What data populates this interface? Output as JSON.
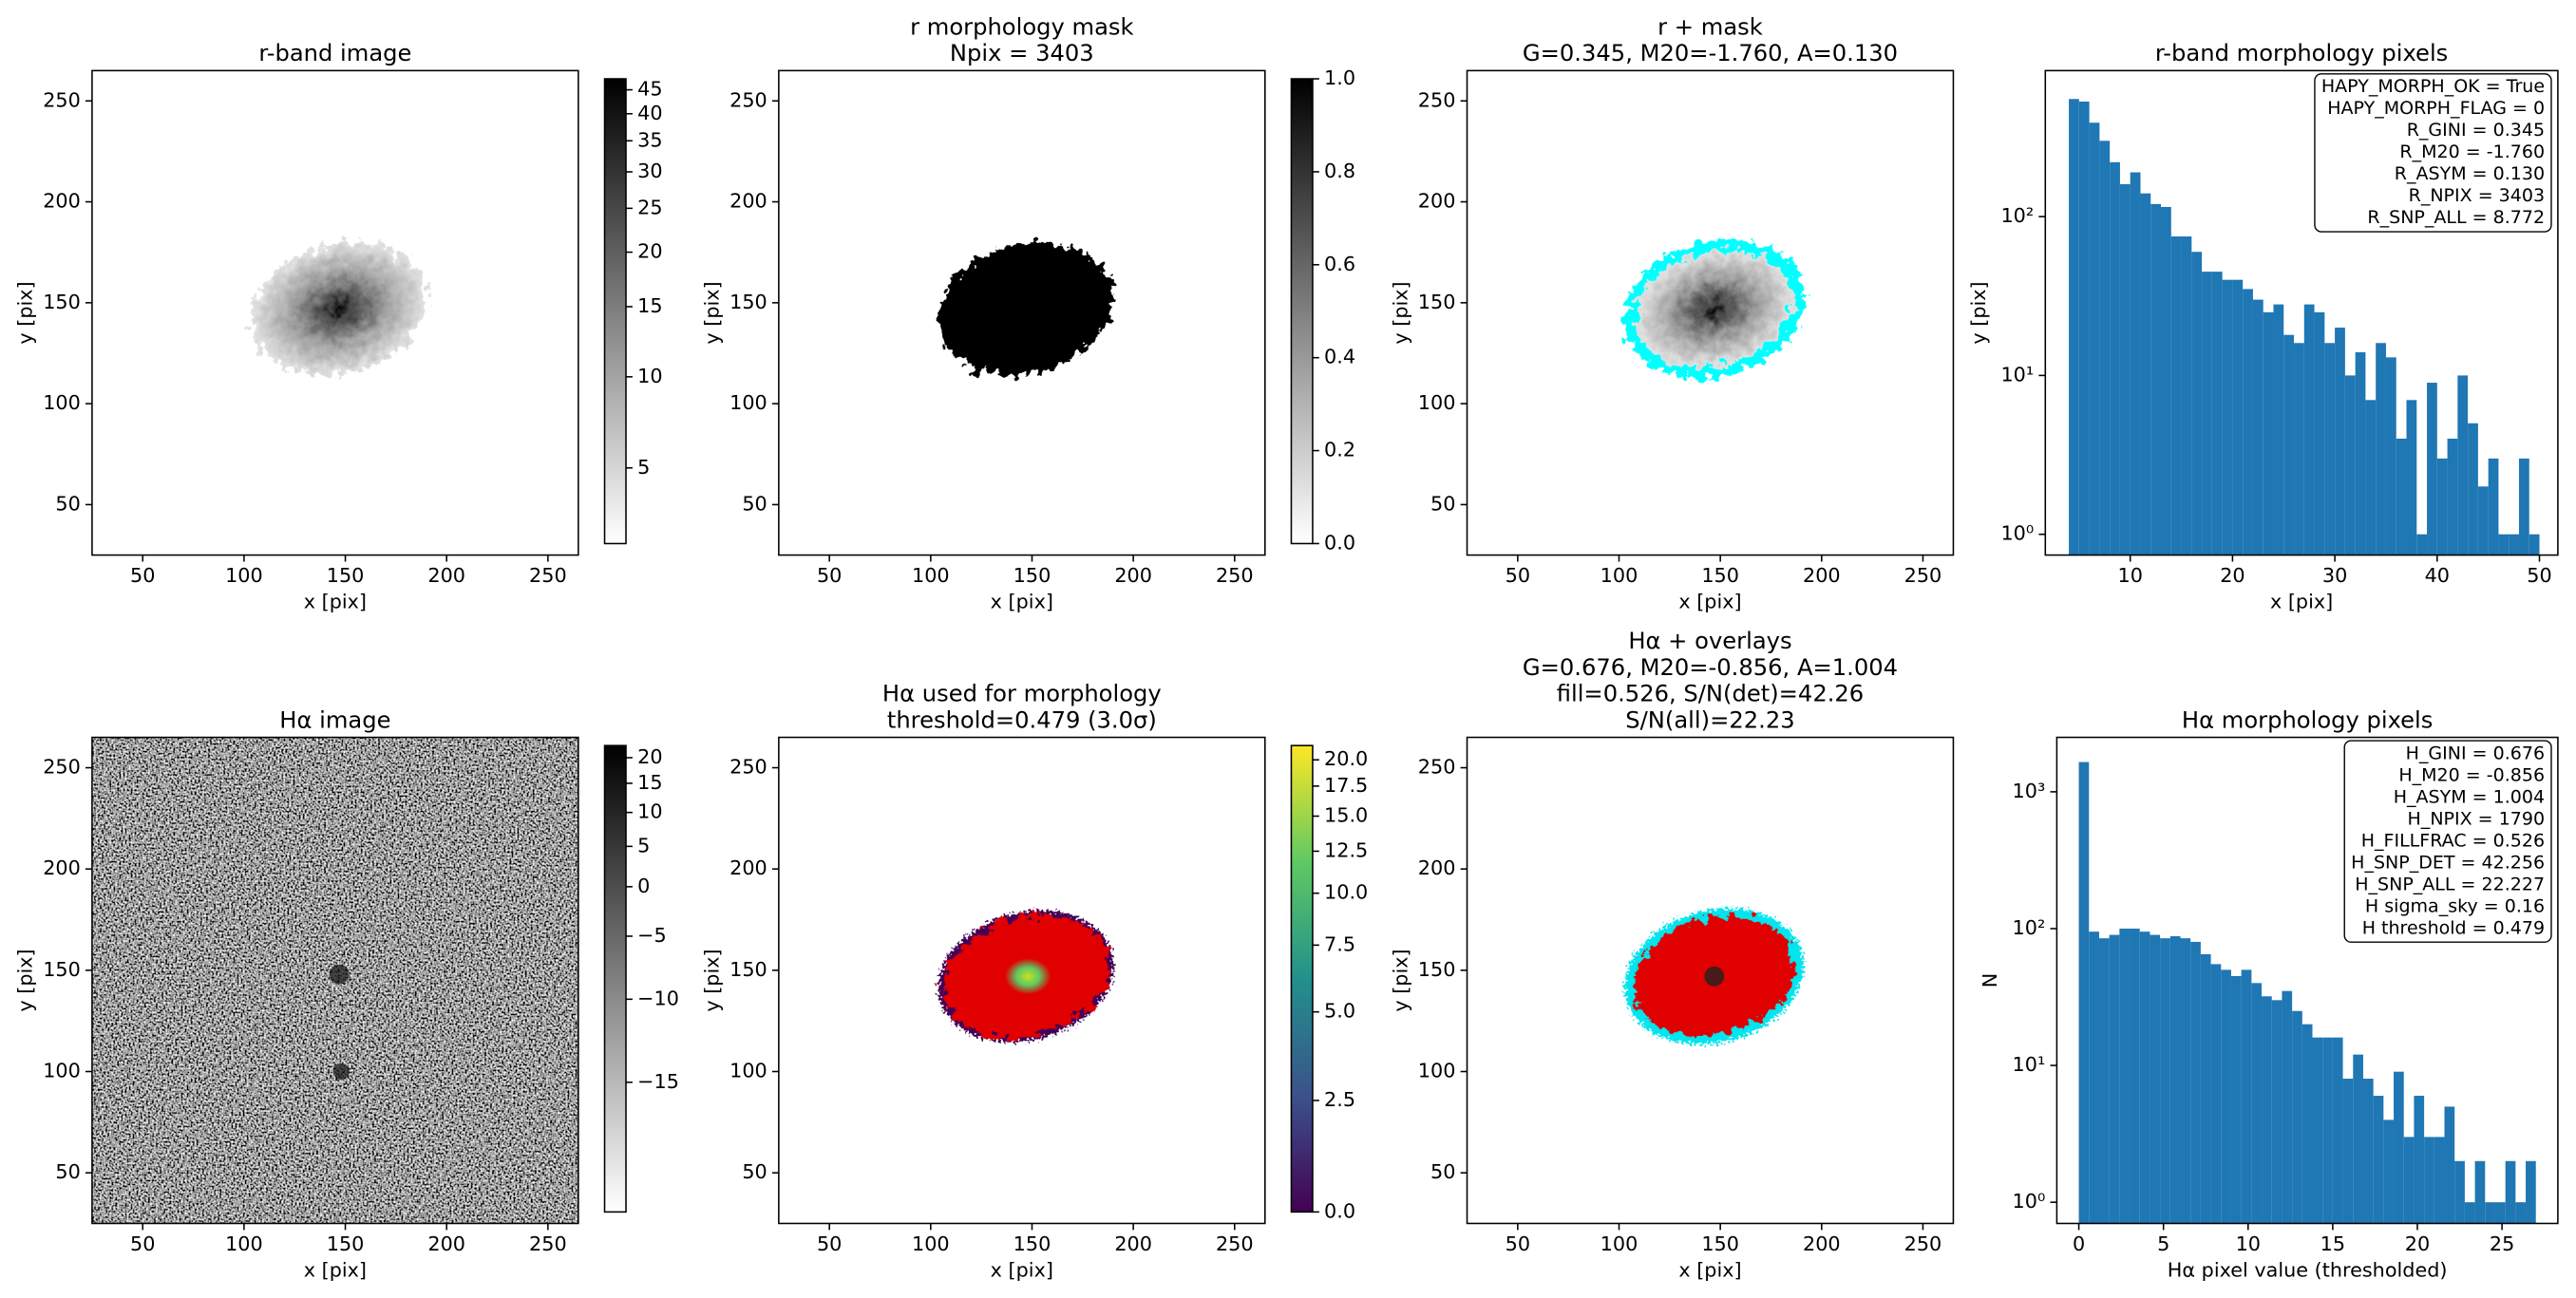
{
  "chart_data": [
    {
      "type": "image",
      "title": [
        "r-band image"
      ],
      "xlabel": "x [pix]",
      "ylabel": "y [pix]",
      "xlim": [
        25,
        265
      ],
      "ylim": [
        25,
        265
      ],
      "xticks": [
        50,
        100,
        150,
        200,
        250
      ],
      "yticks": [
        50,
        100,
        150,
        200,
        250
      ],
      "colorbar": {
        "cmap": "gray_r",
        "norm": "asinh",
        "clim": [
          1.45,
          47.5
        ],
        "ticks": [
          5,
          10,
          15,
          20,
          25,
          30,
          35,
          40,
          45
        ]
      }
    },
    {
      "type": "image",
      "title": [
        "r morphology mask",
        "Npix = 3403"
      ],
      "xlabel": "x [pix]",
      "ylabel": "y [pix]",
      "xlim": [
        25,
        265
      ],
      "ylim": [
        25,
        265
      ],
      "xticks": [
        50,
        100,
        150,
        200,
        250
      ],
      "yticks": [
        50,
        100,
        150,
        200,
        250
      ],
      "colorbar": {
        "cmap": "gray_r",
        "norm": "linear",
        "clim": [
          0,
          1
        ],
        "ticks": [
          {
            "value": 0,
            "label": "0.0"
          },
          0.2,
          0.4,
          0.6,
          0.8,
          {
            "value": 1,
            "label": "1.0"
          }
        ]
      }
    },
    {
      "type": "image",
      "title": [
        "r + mask",
        "G=0.345, M20=-1.760, A=0.130"
      ],
      "xlabel": "x [pix]",
      "ylabel": "y [pix]",
      "xlim": [
        25,
        265
      ],
      "ylim": [
        25,
        265
      ],
      "xticks": [
        50,
        100,
        150,
        200,
        250
      ],
      "yticks": [
        50,
        100,
        150,
        200,
        250
      ]
    },
    {
      "type": "histogram",
      "title": [
        "r-band morphology pixels"
      ],
      "xlabel": "x [pix]",
      "ylabel": "y [pix]",
      "color": "#1f77b4",
      "log_y": true,
      "bins": [
        4,
        5,
        6,
        7,
        8,
        9,
        10,
        11,
        12,
        13,
        14,
        15,
        16,
        17,
        18,
        19,
        20,
        21,
        22,
        23,
        24,
        25,
        26,
        27,
        28,
        29,
        30,
        31,
        32,
        33,
        34,
        35,
        36,
        37,
        38,
        39,
        40,
        41,
        42,
        43,
        44,
        45,
        46,
        47,
        48,
        49,
        50
      ],
      "values": [
        550,
        530,
        390,
        300,
        220,
        160,
        190,
        140,
        120,
        115,
        75,
        75,
        60,
        45,
        45,
        40,
        40,
        35,
        30,
        25,
        28,
        18,
        16,
        28,
        25,
        16,
        20,
        10,
        14,
        7,
        16,
        13,
        4,
        7,
        1,
        9,
        3,
        4,
        10,
        5,
        2,
        3,
        1,
        1,
        3,
        1
      ],
      "xlim": [
        1.7,
        51.8
      ],
      "ylim": [
        0.74,
        830
      ],
      "xticks": [
        10,
        20,
        30,
        40,
        50
      ],
      "yticks": [
        {
          "value": 1,
          "label": "10⁰"
        },
        {
          "value": 10,
          "label": "10¹"
        },
        {
          "value": 100,
          "label": "10²"
        }
      ],
      "annotation": [
        "HAPY_MORPH_OK = True",
        "HAPY_MORPH_FLAG = 0",
        "R_GINI = 0.345",
        "R_M20 = -1.760",
        "R_ASYM = 0.130",
        "R_NPIX = 3403",
        "R_SNP_ALL = 8.772"
      ]
    },
    {
      "type": "image",
      "title": [
        "Hα image"
      ],
      "xlabel": "x [pix]",
      "ylabel": "y [pix]",
      "xlim": [
        25,
        265
      ],
      "ylim": [
        25,
        265
      ],
      "xticks": [
        50,
        100,
        150,
        200,
        250
      ],
      "yticks": [
        50,
        100,
        150,
        200,
        250
      ],
      "colorbar": {
        "cmap": "gray_r",
        "norm": "asinh",
        "clim": [
          -21,
          22.6
        ],
        "ticks": [
          {
            "value": -15,
            "label": "−15"
          },
          {
            "value": -10,
            "label": "−10"
          },
          {
            "value": -5,
            "label": "−5"
          },
          0,
          5,
          10,
          15,
          20
        ]
      }
    },
    {
      "type": "image",
      "title": [
        "Hα used for morphology",
        "threshold=0.479 (3.0σ)"
      ],
      "xlabel": "x [pix]",
      "ylabel": "y [pix]",
      "xlim": [
        25,
        265
      ],
      "ylim": [
        25,
        265
      ],
      "xticks": [
        50,
        100,
        150,
        200,
        250
      ],
      "yticks": [
        50,
        100,
        150,
        200,
        250
      ],
      "colorbar": {
        "cmap": "viridis",
        "norm": "asinh",
        "clim": [
          0,
          21.5
        ],
        "ticks": [
          {
            "value": 0,
            "label": "0.0"
          },
          2.5,
          {
            "value": 5,
            "label": "5.0"
          },
          7.5,
          {
            "value": 10,
            "label": "10.0"
          },
          12.5,
          {
            "value": 15,
            "label": "15.0"
          },
          17.5,
          {
            "value": 20,
            "label": "20.0"
          }
        ]
      }
    },
    {
      "type": "image",
      "title": [
        "Hα + overlays",
        "G=0.676, M20=-0.856, A=1.004",
        "fill=0.526, S/N(det)=42.26",
        "S/N(all)=22.23"
      ],
      "xlabel": "x [pix]",
      "ylabel": "y [pix]",
      "xlim": [
        25,
        265
      ],
      "ylim": [
        25,
        265
      ],
      "xticks": [
        50,
        100,
        150,
        200,
        250
      ],
      "yticks": [
        50,
        100,
        150,
        200,
        250
      ]
    },
    {
      "type": "histogram",
      "title": [
        "Hα morphology pixels"
      ],
      "xlabel": "Hα pixel value (thresholded)",
      "ylabel": "N",
      "color": "#1f77b4",
      "log_y": true,
      "bins": [
        0,
        0.6,
        1.2,
        1.8,
        2.4,
        3,
        3.6,
        4.2,
        4.8,
        5.4,
        6,
        6.6,
        7.2,
        7.8,
        8.4,
        9,
        9.6,
        10.2,
        10.8,
        11.4,
        12,
        12.6,
        13.2,
        13.8,
        14.4,
        15,
        15.6,
        16.2,
        16.8,
        17.4,
        18,
        18.6,
        19.2,
        19.8,
        20.4,
        21,
        21.6,
        22.2,
        22.8,
        23.4,
        24,
        24.6,
        25.2,
        25.8,
        26.4,
        27
      ],
      "values": [
        1650,
        95,
        85,
        90,
        100,
        100,
        95,
        90,
        85,
        88,
        85,
        80,
        65,
        55,
        50,
        45,
        50,
        40,
        32,
        30,
        35,
        25,
        20,
        16,
        16,
        16,
        8,
        12,
        8,
        6,
        4,
        9,
        3,
        6,
        3,
        3,
        5,
        2,
        1,
        2,
        1,
        1,
        2,
        1,
        2
      ],
      "xlim": [
        -1.3,
        28.3
      ],
      "ylim": [
        0.7,
        2500
      ],
      "xticks": [
        0,
        5,
        10,
        15,
        20,
        25
      ],
      "yticks": [
        {
          "value": 1,
          "label": "10⁰"
        },
        {
          "value": 10,
          "label": "10¹"
        },
        {
          "value": 100,
          "label": "10²"
        },
        {
          "value": 1000,
          "label": "10³"
        }
      ],
      "annotation": [
        "H_GINI = 0.676",
        "H_M20 = -0.856",
        "H_ASYM = 1.004",
        "H_NPIX = 1790",
        "H_FILLFRAC = 0.526",
        "H_SNP_DET = 42.256",
        "H_SNP_ALL = 22.227",
        "H sigma_sky = 0.16",
        "H threshold = 0.479"
      ]
    }
  ]
}
